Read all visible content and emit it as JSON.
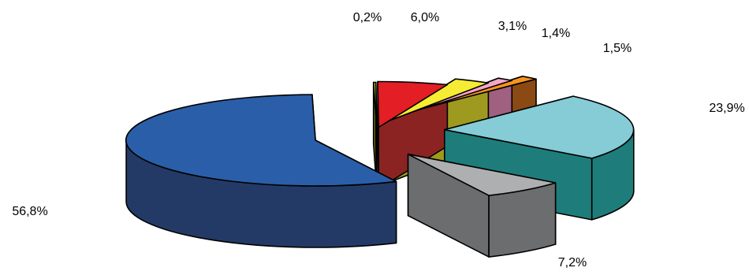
{
  "chart_data": {
    "type": "pie",
    "title": "",
    "slices": [
      {
        "value": 0.2,
        "label": "0,2%",
        "color": "#C8C020",
        "side_color": "#6E6A10"
      },
      {
        "value": 6.0,
        "label": "6,0%",
        "color": "#E31E24",
        "side_color": "#8B2323"
      },
      {
        "value": 3.1,
        "label": "3,1%",
        "color": "#F5EC33",
        "side_color": "#9E9A20"
      },
      {
        "value": 1.4,
        "label": "1,4%",
        "color": "#F4A6C8",
        "side_color": "#A0607F"
      },
      {
        "value": 1.5,
        "label": "1,5%",
        "color": "#F7941E",
        "side_color": "#8B4A13"
      },
      {
        "value": 23.9,
        "label": "23,9%",
        "color": "#86CCD6",
        "side_color": "#1E7D7A"
      },
      {
        "value": 7.2,
        "label": "7,2%",
        "color": "#ADAFB0",
        "side_color": "#6B6D6E"
      },
      {
        "value": 56.8,
        "label": "56,8%",
        "color": "#2A5EA8",
        "side_color": "#243A66"
      }
    ]
  }
}
